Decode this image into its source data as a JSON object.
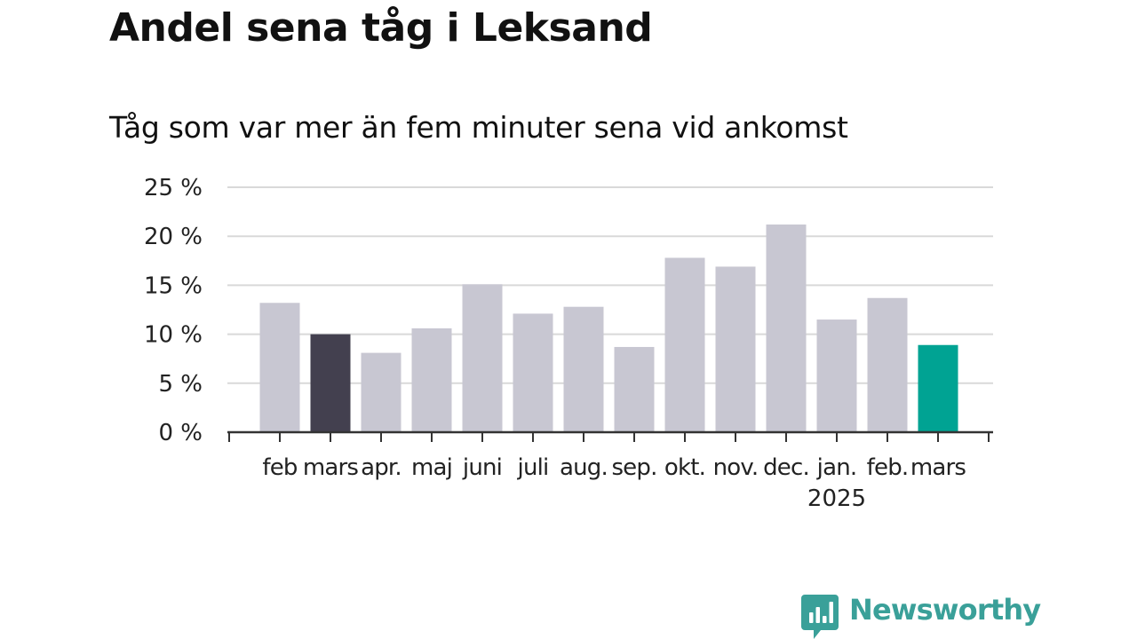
{
  "header": {
    "title": "Andel sena tåg i Leksand",
    "subtitle": "Tåg som var mer än fem minuter sena vid ankomst"
  },
  "brand": {
    "name": "Newsworthy",
    "icon": "newsworthy-logo-icon",
    "color": "#3aa099"
  },
  "chart_data": {
    "type": "bar",
    "title": "Andel sena tåg i Leksand",
    "subtitle": "Tåg som var mer än fem minuter sena vid ankomst",
    "xlabel": "",
    "ylabel": "",
    "ylim": [
      0,
      25
    ],
    "y_ticks": [
      0,
      5,
      10,
      15,
      20,
      25
    ],
    "y_tick_labels": [
      "0 %",
      "5 %",
      "10 %",
      "15 %",
      "20 %",
      "25 %"
    ],
    "grid": true,
    "year_label": "2025",
    "year_label_under": "jan.",
    "categories": [
      "feb",
      "mars",
      "apr.",
      "maj",
      "juni",
      "juli",
      "aug.",
      "sep.",
      "okt.",
      "nov.",
      "dec.",
      "jan.",
      "feb.",
      "mars"
    ],
    "values": [
      13.2,
      10.0,
      8.1,
      10.6,
      15.1,
      12.1,
      12.8,
      8.7,
      17.8,
      16.9,
      21.2,
      11.5,
      13.7,
      8.9
    ],
    "colors": {
      "default": "#c8c7d2",
      "highlight_previous": "#43404f",
      "highlight_current": "#00a393",
      "grid": "#d9d9d9",
      "axis": "#333333",
      "text": "#222222"
    },
    "highlight_previous_index": 1,
    "highlight_current_index": 13
  }
}
